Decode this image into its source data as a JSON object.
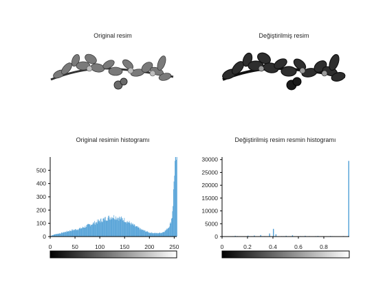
{
  "colors": {
    "bar": "#4f9fd6",
    "axis": "#000000",
    "plant_dark": "#333333",
    "plant_light": "#8a8a8a",
    "background": "#ffffff"
  },
  "panels": {
    "original_image": {
      "title": "Original resim"
    },
    "modified_image": {
      "title": "Değiştirilmiş resim"
    }
  },
  "chart_data": [
    {
      "type": "bar",
      "title": "Original resimin histogramı",
      "xlim": [
        0,
        255
      ],
      "ylim": [
        0,
        600
      ],
      "x_ticks": [
        0,
        50,
        100,
        150,
        200,
        250
      ],
      "x_tick_labels": [
        "0",
        "50",
        "100",
        "150",
        "200",
        "250"
      ],
      "y_ticks": [
        0,
        100,
        200,
        300,
        400,
        500
      ],
      "y_tick_labels": [
        "0",
        "100",
        "200",
        "300",
        "400",
        "500"
      ],
      "anchors": [
        [
          0,
          0
        ],
        [
          2,
          8
        ],
        [
          10,
          18
        ],
        [
          20,
          25
        ],
        [
          40,
          45
        ],
        [
          60,
          60
        ],
        [
          80,
          90
        ],
        [
          100,
          120
        ],
        [
          115,
          140
        ],
        [
          125,
          150
        ],
        [
          135,
          145
        ],
        [
          150,
          125
        ],
        [
          170,
          80
        ],
        [
          185,
          50
        ],
        [
          200,
          30
        ],
        [
          215,
          25
        ],
        [
          225,
          30
        ],
        [
          232,
          45
        ],
        [
          238,
          70
        ],
        [
          242,
          100
        ],
        [
          245,
          150
        ],
        [
          247,
          250
        ],
        [
          250,
          500
        ],
        [
          252,
          600
        ],
        [
          255,
          600
        ]
      ],
      "gradient_bar": {
        "from": "#000000",
        "to": "#ffffff"
      }
    },
    {
      "type": "bar",
      "title": "Değiştirilmiş resim resmin histogramı",
      "xlim": [
        0,
        1
      ],
      "ylim": [
        0,
        31000
      ],
      "x_ticks": [
        0,
        0.2,
        0.4,
        0.6,
        0.8
      ],
      "x_tick_labels": [
        "0",
        "0.2",
        "0.4",
        "0.6",
        "0.8"
      ],
      "y_ticks": [
        0,
        5000,
        10000,
        15000,
        20000,
        25000,
        30000
      ],
      "y_tick_labels": [
        "0",
        "5000",
        "10000",
        "15000",
        "20000",
        "25000",
        "30000"
      ],
      "spikes": [
        [
          0.1,
          300
        ],
        [
          0.2,
          350
        ],
        [
          0.25,
          400
        ],
        [
          0.3,
          600
        ],
        [
          0.37,
          1200
        ],
        [
          0.4,
          3000
        ],
        [
          0.42,
          900
        ],
        [
          0.5,
          300
        ],
        [
          0.55,
          500
        ],
        [
          0.65,
          300
        ],
        [
          0.75,
          250
        ],
        [
          0.85,
          200
        ],
        [
          0.95,
          180
        ],
        [
          1.0,
          29500
        ]
      ],
      "gradient_bar": {
        "from": "#000000",
        "to": "#ffffff"
      }
    }
  ]
}
